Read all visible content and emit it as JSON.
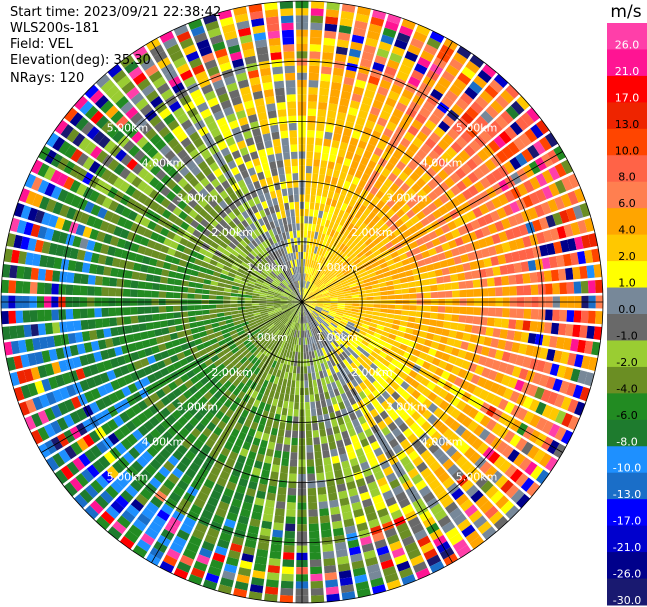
{
  "header": {
    "start_time": "Start time: 2023/09/21 22:38:42",
    "instrument": "WLS200s-181",
    "field": "Field: VEL",
    "elevation": "Elevation(deg): 35.30",
    "nrays": "NRays: 120"
  },
  "chart_data": {
    "type": "heatmap",
    "subtype": "ppi-radial-velocity",
    "field": "VEL",
    "elevation_deg": 35.3,
    "n_rays": 120,
    "max_range_km": 5.0,
    "range_ring_labels": [
      "1.00km",
      "2.00km",
      "3.00km",
      "4.00km",
      "5.00km"
    ],
    "colorbar": {
      "unit": "m/s",
      "tick_labels": [
        "26.0",
        "21.0",
        "17.0",
        "13.0",
        "10.0",
        "8.0",
        "6.0",
        "4.0",
        "2.0",
        "1.0",
        "0.0",
        "-1.0",
        "-2.0",
        "-4.0",
        "-6.0",
        "-8.0",
        "-10.0",
        "-13.0",
        "-17.0",
        "-21.0",
        "-26.0",
        "-30.0"
      ],
      "levels": [
        30,
        26,
        21,
        17,
        13,
        10,
        8,
        6,
        4,
        2,
        1,
        0,
        -1,
        -2,
        -4,
        -6,
        -8,
        -10,
        -13,
        -17,
        -21,
        -26,
        -30
      ],
      "colors": [
        "#ff3fa9",
        "#ff1493",
        "#ff0000",
        "#ee2400",
        "#ff4500",
        "#ff6347",
        "#ff7f50",
        "#ffa500",
        "#ffc800",
        "#ffff00",
        "#778899",
        "#696969",
        "#9acd32",
        "#6b8e23",
        "#228b22",
        "#1e7b2e",
        "#1e90ff",
        "#1a6ec8",
        "#0000ff",
        "#0000cd",
        "#00008b",
        "#191970"
      ]
    },
    "grid": true
  }
}
